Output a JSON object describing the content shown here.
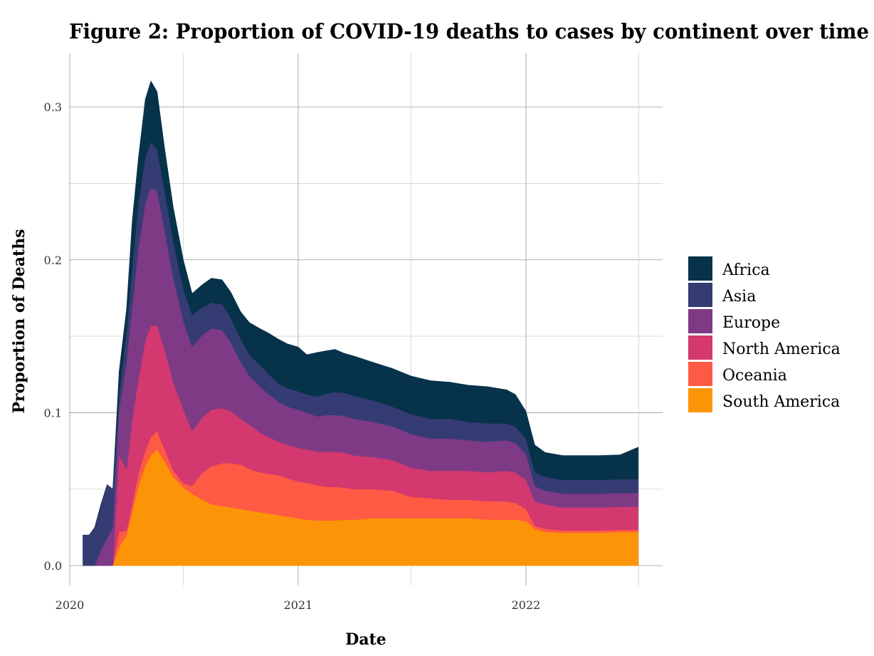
{
  "chart_data": {
    "type": "area",
    "stacked": true,
    "title": "Figure 2: Proportion of COVID-19 deaths to cases by continent over time",
    "xlabel": "Date",
    "ylabel": "Proportion of Deaths",
    "x_ticks": [
      "2020",
      "2021",
      "2022"
    ],
    "y_ticks": [
      "0.0",
      "0.1",
      "0.2",
      "0.3"
    ],
    "xlim": [
      "2020-01-01",
      "2022-07-31"
    ],
    "ylim": [
      -0.013,
      0.335
    ],
    "grid": true,
    "legend": "right",
    "x": [
      "2020-01-22",
      "2020-02-01",
      "2020-02-10",
      "2020-02-20",
      "2020-03-01",
      "2020-03-10",
      "2020-03-20",
      "2020-04-01",
      "2020-04-10",
      "2020-04-20",
      "2020-05-01",
      "2020-05-10",
      "2020-05-20",
      "2020-06-01",
      "2020-06-15",
      "2020-07-01",
      "2020-07-15",
      "2020-08-01",
      "2020-08-15",
      "2020-09-01",
      "2020-09-15",
      "2020-10-01",
      "2020-10-15",
      "2020-11-01",
      "2020-11-15",
      "2020-12-01",
      "2020-12-15",
      "2021-01-01",
      "2021-01-15",
      "2021-02-01",
      "2021-02-15",
      "2021-03-01",
      "2021-03-15",
      "2021-04-01",
      "2021-05-01",
      "2021-06-01",
      "2021-07-01",
      "2021-08-01",
      "2021-09-01",
      "2021-10-01",
      "2021-11-01",
      "2021-12-01",
      "2021-12-15",
      "2022-01-01",
      "2022-01-15",
      "2022-02-01",
      "2022-03-01",
      "2022-04-01",
      "2022-05-01",
      "2022-06-01",
      "2022-06-30"
    ],
    "series": [
      {
        "name": "South America",
        "color": "#FB9507",
        "values": [
          0,
          0,
          0,
          0,
          0,
          0,
          0.012,
          0.02,
          0.035,
          0.052,
          0.065,
          0.072,
          0.076,
          0.068,
          0.058,
          0.051,
          0.047,
          0.043,
          0.04,
          0.039,
          0.038,
          0.037,
          0.036,
          0.035,
          0.034,
          0.033,
          0.032,
          0.031,
          0.03,
          0.0295,
          0.0295,
          0.0295,
          0.03,
          0.03,
          0.031,
          0.031,
          0.031,
          0.031,
          0.031,
          0.031,
          0.03,
          0.03,
          0.03,
          0.029,
          0.024,
          0.022,
          0.0215,
          0.0215,
          0.0215,
          0.022,
          0.022
        ]
      },
      {
        "name": "Oceania",
        "color": "#FF5A43",
        "values": [
          0,
          0,
          0,
          0,
          0,
          0,
          0.01,
          0.003,
          0.005,
          0.008,
          0.01,
          0.012,
          0.012,
          0.008,
          0.004,
          0.003,
          0.005,
          0.018,
          0.025,
          0.028,
          0.029,
          0.029,
          0.027,
          0.026,
          0.026,
          0.026,
          0.025,
          0.024,
          0.024,
          0.023,
          0.022,
          0.022,
          0.021,
          0.02,
          0.019,
          0.018,
          0.014,
          0.013,
          0.012,
          0.012,
          0.012,
          0.012,
          0.011,
          0.008,
          0.002,
          0.002,
          0.0015,
          0.0015,
          0.0015,
          0.0015,
          0.0015
        ]
      },
      {
        "name": "North America",
        "color": "#D3386F",
        "values": [
          0,
          0,
          0,
          0,
          0,
          0,
          0.05,
          0.04,
          0.055,
          0.062,
          0.072,
          0.073,
          0.069,
          0.065,
          0.058,
          0.048,
          0.036,
          0.036,
          0.037,
          0.036,
          0.034,
          0.03,
          0.029,
          0.026,
          0.024,
          0.022,
          0.022,
          0.022,
          0.022,
          0.022,
          0.023,
          0.023,
          0.023,
          0.022,
          0.021,
          0.02,
          0.019,
          0.018,
          0.019,
          0.019,
          0.019,
          0.02,
          0.02,
          0.019,
          0.016,
          0.016,
          0.015,
          0.015,
          0.015,
          0.015,
          0.015
        ]
      },
      {
        "name": "Europe",
        "color": "#7F3A85",
        "values": [
          0,
          0,
          0,
          0.01,
          0.018,
          0.025,
          0.03,
          0.07,
          0.075,
          0.085,
          0.09,
          0.09,
          0.088,
          0.078,
          0.068,
          0.058,
          0.055,
          0.054,
          0.053,
          0.051,
          0.045,
          0.037,
          0.032,
          0.03,
          0.028,
          0.026,
          0.025,
          0.025,
          0.024,
          0.023,
          0.024,
          0.024,
          0.024,
          0.024,
          0.023,
          0.022,
          0.022,
          0.021,
          0.021,
          0.02,
          0.02,
          0.02,
          0.019,
          0.017,
          0.01,
          0.009,
          0.009,
          0.009,
          0.009,
          0.009,
          0.009
        ]
      },
      {
        "name": "Asia",
        "color": "#353B73",
        "values": [
          0.02,
          0.02,
          0.025,
          0.03,
          0.035,
          0.025,
          0.01,
          0.02,
          0.025,
          0.03,
          0.03,
          0.03,
          0.027,
          0.026,
          0.024,
          0.021,
          0.021,
          0.018,
          0.017,
          0.017,
          0.016,
          0.015,
          0.014,
          0.014,
          0.013,
          0.012,
          0.012,
          0.012,
          0.012,
          0.013,
          0.014,
          0.015,
          0.015,
          0.015,
          0.014,
          0.013,
          0.013,
          0.013,
          0.013,
          0.012,
          0.012,
          0.011,
          0.011,
          0.01,
          0.009,
          0.009,
          0.009,
          0.009,
          0.009,
          0.009,
          0.009
        ]
      },
      {
        "name": "Africa",
        "color": "#06324A",
        "values": [
          0,
          0,
          0,
          0,
          0,
          0,
          0.015,
          0.015,
          0.03,
          0.03,
          0.038,
          0.04,
          0.038,
          0.028,
          0.022,
          0.019,
          0.014,
          0.015,
          0.016,
          0.016,
          0.017,
          0.018,
          0.021,
          0.024,
          0.027,
          0.029,
          0.029,
          0.029,
          0.026,
          0.029,
          0.028,
          0.028,
          0.026,
          0.026,
          0.025,
          0.025,
          0.025,
          0.025,
          0.024,
          0.024,
          0.024,
          0.022,
          0.021,
          0.018,
          0.018,
          0.016,
          0.016,
          0.016,
          0.016,
          0.016,
          0.021
        ]
      }
    ]
  }
}
